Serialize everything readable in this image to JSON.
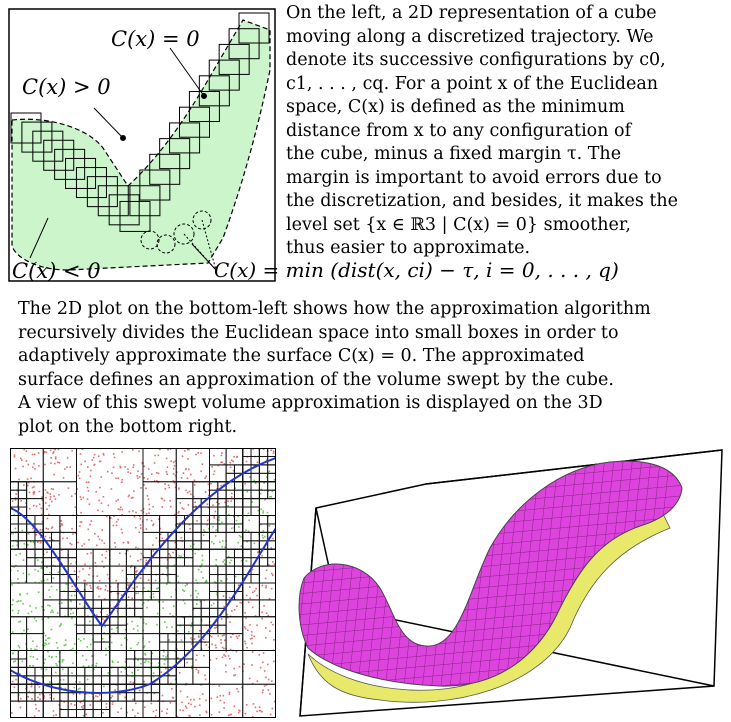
{
  "top_diagram": {
    "labels": {
      "c_zero": "C(x) = 0",
      "c_positive": "C(x) > 0",
      "c_negative": "C(x) < 0"
    }
  },
  "description": {
    "lines": [
      "On the left, a 2D representation of a cube",
      "moving along a discretized trajectory. We",
      "denote its successive configurations by c0,",
      "c1, . . . , cq. For a point x of the Euclidean",
      "space, C(x) is defined as the minimum",
      "distance from x to any configuration of",
      "the cube, minus a fixed margin τ. The",
      "margin is important to avoid errors due to",
      "the discretization, and besides, it makes the",
      "level set {x ∈ ℝ3 | C(x) = 0} smoother,",
      "thus easier to approximate."
    ]
  },
  "formula": "C(x) = min (dist(x, ci) − τ, i = 0, . . . , q)",
  "middle_text": {
    "lines": [
      "The 2D plot on the bottom-left shows how the approximation algorithm",
      "recursively divides the Euclidean space into small boxes in order to",
      "adaptively approximate the surface C(x) = 0. The approximated",
      "surface defines an approximation of the volume swept by the cube.",
      "A view of this swept volume approximation is displayed on the 3D",
      "plot on the bottom right."
    ]
  },
  "colors": {
    "region_fill": "#ccf5cc",
    "outside_points": "#e07070",
    "inside_points": "#66cc55",
    "boundary_curve": "#2233cc",
    "volume_top": "#dd44dd",
    "volume_side": "#e8e86a"
  }
}
